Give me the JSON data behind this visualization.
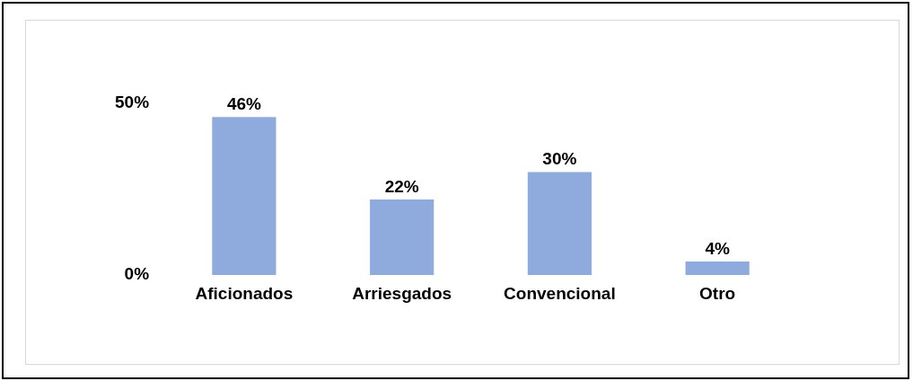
{
  "chart_data": {
    "type": "bar",
    "categories": [
      "Aficionados",
      "Arriesgados",
      "Convencional",
      "Otro"
    ],
    "values": [
      46,
      22,
      30,
      4
    ],
    "value_labels": [
      "46%",
      "22%",
      "30%",
      "4%"
    ],
    "color": "#8faadc",
    "ylim": [
      0,
      50
    ],
    "yticks": [
      {
        "value": 0,
        "label": "0%"
      },
      {
        "value": 50,
        "label": "50%"
      }
    ],
    "grid": false,
    "legend": false
  }
}
